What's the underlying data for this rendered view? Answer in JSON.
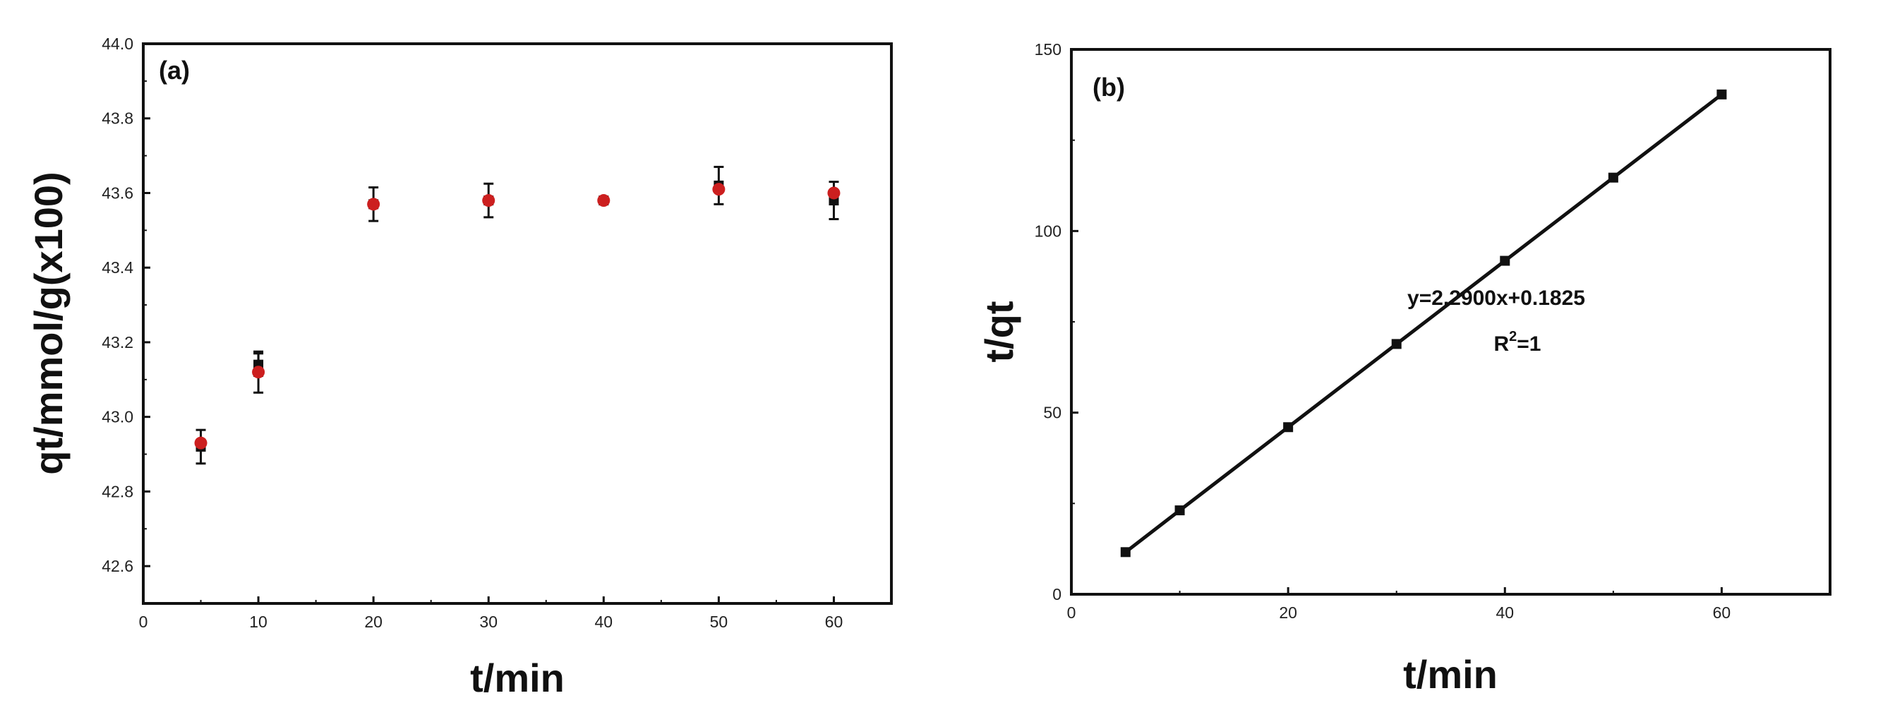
{
  "chart_data": [
    {
      "type": "scatter",
      "panel_label": "(a)",
      "xlabel": "t/min",
      "ylabel": "qt/mmol/g(x100)",
      "xlim": [
        0,
        65
      ],
      "ylim": [
        42.5,
        44.0
      ],
      "x_ticks": [
        "0",
        "10",
        "20",
        "30",
        "40",
        "50",
        "60"
      ],
      "y_ticks": [
        "42.6",
        "42.8",
        "43.0",
        "43.2",
        "43.4",
        "43.6",
        "43.8",
        "44.0"
      ],
      "grid": false,
      "series": [
        {
          "marker": "square",
          "color": "#111111",
          "x": [
            5,
            10,
            20,
            30,
            40,
            50,
            60
          ],
          "y": [
            42.92,
            43.14,
            43.57,
            43.58,
            43.58,
            43.62,
            43.58
          ],
          "error": [
            0.045,
            0.03,
            0.045,
            0.045,
            0,
            0.05,
            0.05
          ]
        },
        {
          "marker": "circle",
          "color": "#cc1f1f",
          "x": [
            5,
            10,
            20,
            30,
            40,
            50,
            60
          ],
          "y": [
            42.93,
            43.12,
            43.57,
            43.58,
            43.58,
            43.61,
            43.6
          ],
          "error": [
            0,
            0.055,
            0,
            0,
            0,
            0,
            0
          ]
        }
      ]
    },
    {
      "type": "line",
      "panel_label": "(b)",
      "xlabel": "t/min",
      "ylabel": "t/qt",
      "xlim": [
        0,
        70
      ],
      "ylim": [
        0,
        150
      ],
      "x_ticks": [
        "0",
        "20",
        "40",
        "60"
      ],
      "y_ticks": [
        "0",
        "50",
        "100",
        "150"
      ],
      "grid": false,
      "series": [
        {
          "marker": "square",
          "color": "#111111",
          "x": [
            5,
            10,
            20,
            30,
            40,
            50,
            60
          ],
          "y": [
            11.6,
            23.1,
            46.0,
            68.9,
            91.8,
            114.7,
            137.6
          ]
        }
      ],
      "annotation": {
        "equation": "y=2.2900x+0.1825",
        "r2_prefix": "R",
        "r2_sup": "2",
        "r2_suffix": "=1"
      }
    }
  ]
}
